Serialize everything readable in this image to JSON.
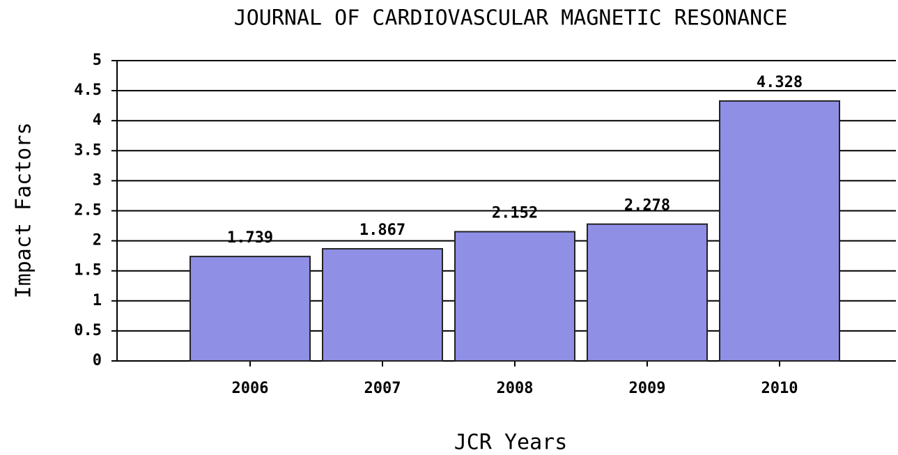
{
  "chart_data": {
    "type": "bar",
    "title": "JOURNAL OF CARDIOVASCULAR MAGNETIC RESONANCE",
    "xlabel": "JCR Years",
    "ylabel": "Impact Factors",
    "categories": [
      "2006",
      "2007",
      "2008",
      "2009",
      "2010"
    ],
    "values": [
      1.739,
      1.867,
      2.152,
      2.278,
      4.328
    ],
    "color": "#8f8fe6",
    "ylim": [
      0,
      5
    ],
    "yticks": [
      0,
      0.5,
      1,
      1.5,
      2,
      2.5,
      3,
      3.5,
      4,
      4.5,
      5
    ],
    "grid": true
  }
}
